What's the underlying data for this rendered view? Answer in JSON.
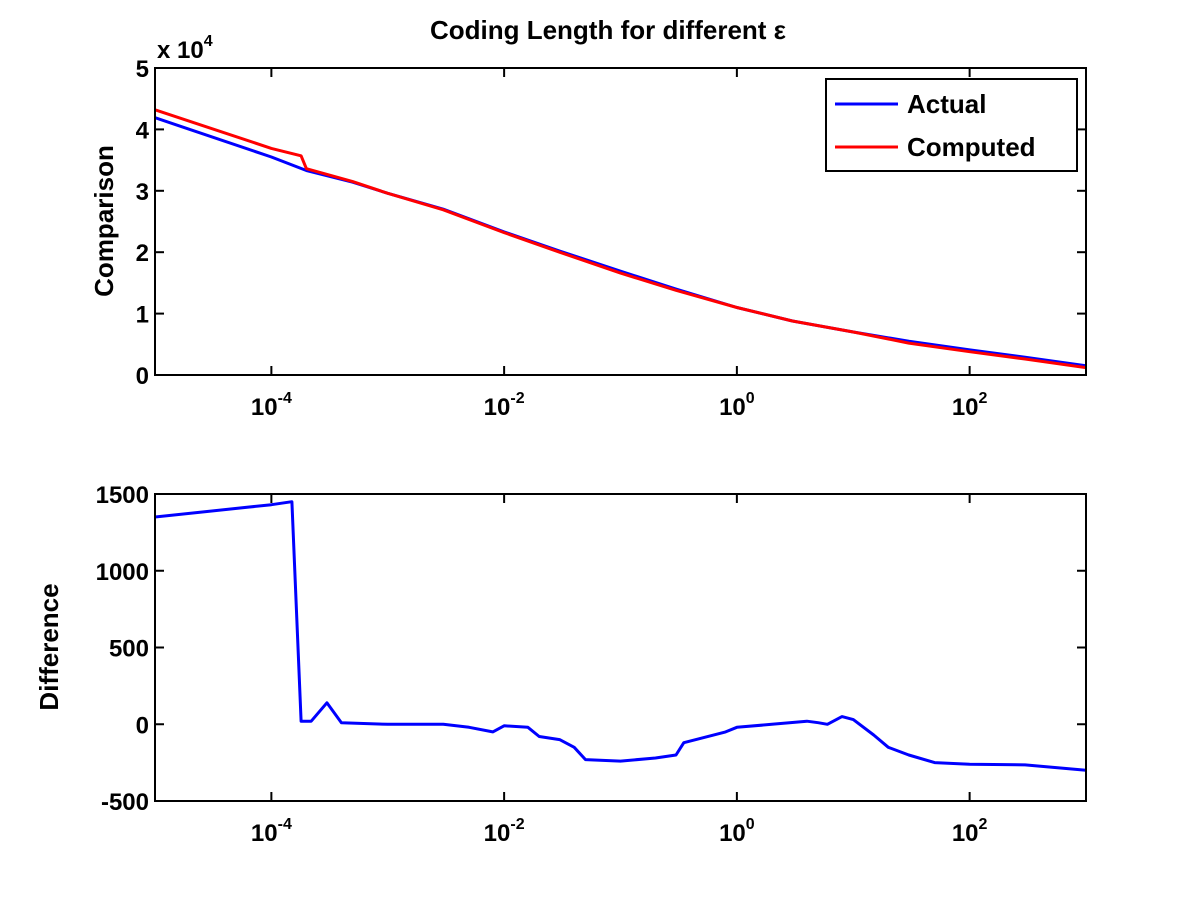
{
  "figure": {
    "title": "Coding Length for different ε",
    "y_multiplier": {
      "prefix": "x 10",
      "exponent": "4"
    }
  },
  "chart_data": [
    {
      "type": "line",
      "title": "Coding Length for different ε",
      "xscale": "log",
      "xlim": [
        1e-05,
        1000
      ],
      "ylim": [
        0,
        5
      ],
      "y_multiplier": 10000,
      "xlabel": "",
      "ylabel": "Comparison",
      "x_ticks": [
        {
          "value": 0.0001,
          "base": "10",
          "exp": "-4"
        },
        {
          "value": 0.01,
          "base": "10",
          "exp": "-2"
        },
        {
          "value": 1,
          "base": "10",
          "exp": "0"
        },
        {
          "value": 100,
          "base": "10",
          "exp": "2"
        }
      ],
      "y_ticks": [
        {
          "value": 0,
          "label": "0"
        },
        {
          "value": 1,
          "label": "1"
        },
        {
          "value": 2,
          "label": "2"
        },
        {
          "value": 3,
          "label": "3"
        },
        {
          "value": 4,
          "label": "4"
        },
        {
          "value": 5,
          "label": "5"
        }
      ],
      "legend": {
        "position": "top-right",
        "entries": [
          "Actual",
          "Computed"
        ]
      },
      "series": [
        {
          "name": "Actual",
          "color": "#0000ff",
          "x": [
            1e-05,
            0.0001,
            0.0002,
            0.0005,
            0.001,
            0.003,
            0.01,
            0.03,
            0.1,
            0.3,
            1,
            3,
            10,
            30,
            100,
            300,
            1000
          ],
          "y": [
            4.19,
            3.55,
            3.33,
            3.14,
            2.96,
            2.7,
            2.33,
            2.02,
            1.69,
            1.4,
            1.1,
            0.88,
            0.7,
            0.55,
            0.41,
            0.29,
            0.15
          ]
        },
        {
          "name": "Computed",
          "color": "#ff0000",
          "x": [
            1e-05,
            0.0001,
            0.00018,
            0.0002,
            0.0005,
            0.001,
            0.003,
            0.01,
            0.03,
            0.1,
            0.3,
            1,
            3,
            10,
            30,
            100,
            300,
            1000
          ],
          "y": [
            4.32,
            3.69,
            3.57,
            3.36,
            3.15,
            2.96,
            2.69,
            2.32,
            2.0,
            1.66,
            1.38,
            1.1,
            0.88,
            0.7,
            0.52,
            0.38,
            0.26,
            0.12
          ]
        }
      ]
    },
    {
      "type": "line",
      "xscale": "log",
      "xlim": [
        1e-05,
        1000
      ],
      "ylim": [
        -500,
        1500
      ],
      "xlabel": "",
      "ylabel": "Difference",
      "x_ticks": [
        {
          "value": 0.0001,
          "base": "10",
          "exp": "-4"
        },
        {
          "value": 0.01,
          "base": "10",
          "exp": "-2"
        },
        {
          "value": 1,
          "base": "10",
          "exp": "0"
        },
        {
          "value": 100,
          "base": "10",
          "exp": "2"
        }
      ],
      "y_ticks": [
        {
          "value": -500,
          "label": "-500"
        },
        {
          "value": 0,
          "label": "0"
        },
        {
          "value": 500,
          "label": "500"
        },
        {
          "value": 1000,
          "label": "1000"
        },
        {
          "value": 1500,
          "label": "1500"
        }
      ],
      "series": [
        {
          "color": "#0000ff",
          "x": [
            1e-05,
            0.0001,
            0.00015,
            0.00018,
            0.00022,
            0.0003,
            0.0004,
            0.001,
            0.003,
            0.005,
            0.008,
            0.01,
            0.016,
            0.02,
            0.03,
            0.04,
            0.05,
            0.1,
            0.2,
            0.3,
            0.35,
            0.5,
            0.8,
            1,
            2,
            4,
            5,
            6,
            8,
            10,
            15,
            20,
            30,
            50,
            100,
            300,
            1000
          ],
          "y": [
            1350,
            1430,
            1450,
            20,
            20,
            140,
            10,
            0,
            0,
            -20,
            -50,
            -10,
            -20,
            -80,
            -100,
            -150,
            -230,
            -240,
            -220,
            -200,
            -120,
            -90,
            -50,
            -20,
            0,
            20,
            10,
            0,
            50,
            30,
            -70,
            -150,
            -200,
            -250,
            -260,
            -265,
            -300
          ]
        }
      ]
    }
  ]
}
